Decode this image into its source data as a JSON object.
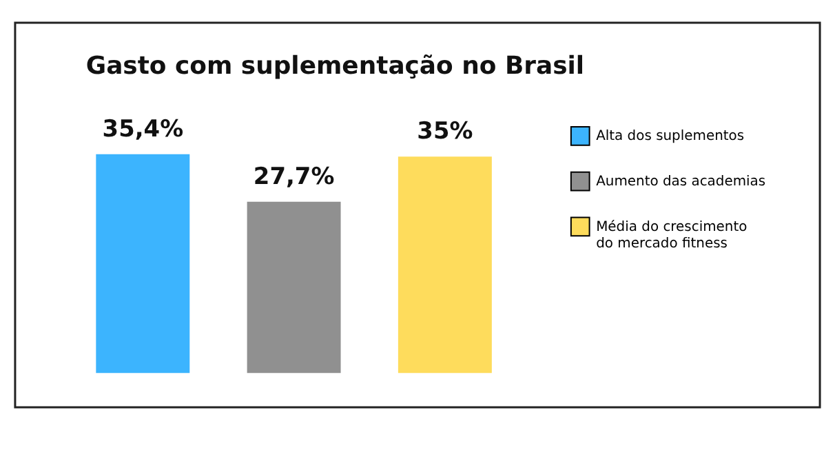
{
  "chart_data": {
    "type": "bar",
    "title": "Gasto com suplementação no Brasil",
    "categories": [
      null,
      null,
      null
    ],
    "series": [
      {
        "name": "Alta dos suplementos",
        "color": "#3cb4fe",
        "values": [
          35.4,
          null,
          null
        ],
        "value_labels": [
          "35,4%",
          null,
          null
        ]
      },
      {
        "name": "Aumento das academias",
        "color": "#909090",
        "values": [
          null,
          27.7,
          null
        ],
        "value_labels": [
          null,
          "27,7%",
          null
        ]
      },
      {
        "name": "Média do crescimento do mercado fitness",
        "color": "#fedc5c",
        "values": [
          null,
          null,
          35
        ],
        "value_labels": [
          null,
          null,
          "35%"
        ]
      }
    ],
    "stacked": true,
    "legend": "right",
    "grid": false,
    "tick_labels": false
  }
}
